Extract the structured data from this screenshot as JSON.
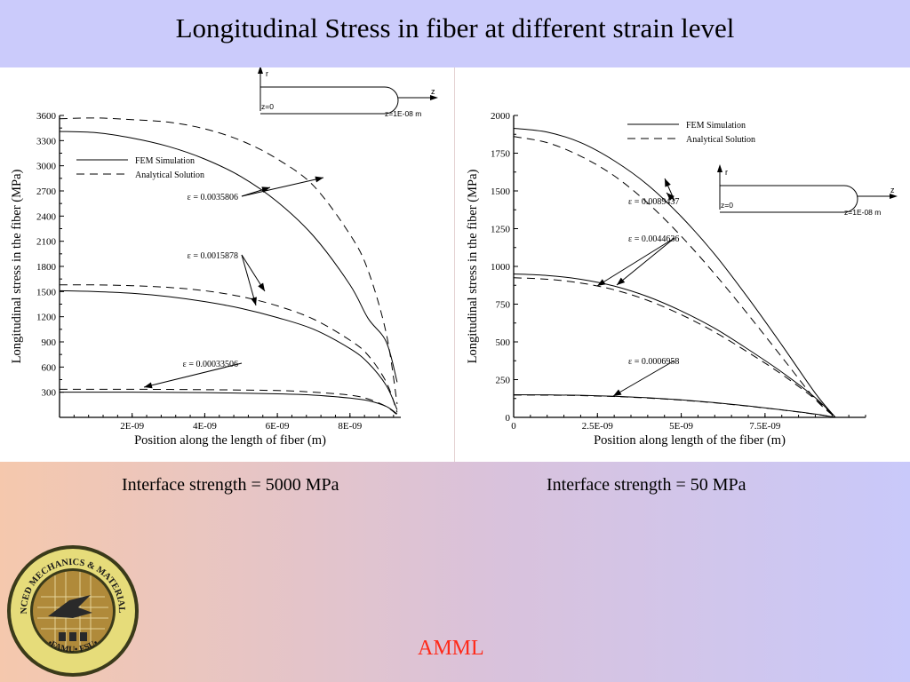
{
  "header": {
    "title": "Longitudinal Stress in fiber at different strain level"
  },
  "captions": {
    "left": "Interface strength = 5000 MPa",
    "right": "Interface strength = 50 MPa"
  },
  "footer": {
    "label": "AMML"
  },
  "logo": {
    "top_text": "ADVANCED MECHANICS & MATERIALS LAB",
    "bottom_text": "•FAMU• FSU•"
  },
  "colors": {
    "title_bg": "#cbcbfb",
    "footer_label": "#ff2a1a",
    "curve": "#000000"
  },
  "chart_data": [
    {
      "type": "line",
      "xlabel": "Position along the length of fiber (m)",
      "ylabel": "Longitudinal stress in the fiber (MPa)",
      "xlim": [
        0,
        9.4e-09
      ],
      "ylim": [
        0,
        3600
      ],
      "xticks": [
        2e-09,
        4e-09,
        6e-09,
        8e-09
      ],
      "xtick_labels": [
        "2E-09",
        "4E-09",
        "6E-09",
        "8E-09"
      ],
      "yticks": [
        300,
        600,
        900,
        1200,
        1500,
        1800,
        2100,
        2400,
        2700,
        3000,
        3300,
        3600
      ],
      "ytick_labels": [
        "300",
        "600",
        "900",
        "1200",
        "1500",
        "1800",
        "2100",
        "2400",
        "2700",
        "3000",
        "3300",
        "3600"
      ],
      "legend": {
        "position": "upper-left",
        "entries": [
          {
            "label": "FEM Simulation",
            "style": "solid"
          },
          {
            "label": "Analytical Solution",
            "style": "dashed"
          }
        ]
      },
      "inset": {
        "r_label": "r",
        "z_label": "z",
        "z_start": "z=0",
        "z_end": "z=1E-08 m"
      },
      "annotations": [
        {
          "text": "ε = 0.0035806",
          "x": 3.3e-09,
          "y": 2580
        },
        {
          "text": "ε = 0.0015878",
          "x": 3.3e-09,
          "y": 1650
        },
        {
          "text": "ε = 0.00033506",
          "x": 3.3e-09,
          "y": 560
        }
      ],
      "series": [
        {
          "style": "solid",
          "x": [
            0,
            1e-09,
            2e-09,
            3e-09,
            4e-09,
            5e-09,
            6e-09,
            7e-09,
            8e-09,
            8.5e-09,
            9e-09,
            9.3e-09
          ],
          "y": [
            3410,
            3395,
            3330,
            3230,
            3080,
            2870,
            2570,
            2160,
            1580,
            1180,
            900,
            420
          ]
        },
        {
          "style": "dashed",
          "x": [
            0,
            1e-09,
            2e-09,
            3e-09,
            4e-09,
            5e-09,
            6e-09,
            7e-09,
            8e-09,
            8.5e-09,
            9e-09,
            9.3e-09
          ],
          "y": [
            3560,
            3570,
            3550,
            3520,
            3440,
            3300,
            3080,
            2760,
            2180,
            1750,
            1000,
            160
          ]
        },
        {
          "style": "solid",
          "x": [
            0,
            1e-09,
            2e-09,
            3e-09,
            4e-09,
            5e-09,
            6e-09,
            7e-09,
            8e-09,
            8.5e-09,
            9e-09,
            9.3e-09
          ],
          "y": [
            1510,
            1500,
            1480,
            1440,
            1380,
            1300,
            1190,
            1050,
            820,
            650,
            380,
            90
          ]
        },
        {
          "style": "dashed",
          "x": [
            0,
            1e-09,
            2e-09,
            3e-09,
            4e-09,
            5e-09,
            6e-09,
            7e-09,
            8e-09,
            8.5e-09,
            9e-09,
            9.3e-09
          ],
          "y": [
            1580,
            1580,
            1570,
            1550,
            1510,
            1440,
            1330,
            1170,
            920,
            740,
            420,
            60
          ]
        },
        {
          "style": "solid",
          "x": [
            0,
            2e-09,
            4e-09,
            6e-09,
            7e-09,
            8e-09,
            8.5e-09,
            9e-09,
            9.3e-09
          ],
          "y": [
            300,
            300,
            295,
            280,
            265,
            230,
            200,
            130,
            40
          ]
        },
        {
          "style": "dashed",
          "x": [
            0,
            2e-09,
            4e-09,
            6e-09,
            7e-09,
            8e-09,
            8.5e-09,
            9e-09,
            9.3e-09
          ],
          "y": [
            335,
            335,
            330,
            320,
            300,
            265,
            220,
            130,
            30
          ]
        }
      ]
    },
    {
      "type": "line",
      "xlabel": "Position along length of the fiber (m)",
      "ylabel": "Longitudinal stress in the fiber (MPa)",
      "xlim": [
        0,
        1.05e-08
      ],
      "ylim": [
        0,
        2000
      ],
      "xticks": [
        0,
        2.5e-09,
        5e-09,
        7.5e-09
      ],
      "xtick_labels": [
        "0",
        "2.5E-09",
        "5E-09",
        "7.5E-09"
      ],
      "yticks": [
        0,
        250,
        500,
        750,
        1000,
        1250,
        1500,
        1750,
        2000
      ],
      "ytick_labels": [
        "0",
        "250",
        "500",
        "750",
        "1000",
        "1250",
        "1500",
        "1750",
        "2000"
      ],
      "legend": {
        "position": "top-right",
        "entries": [
          {
            "label": "FEM Simulation",
            "style": "solid"
          },
          {
            "label": "Analytical Solution",
            "style": "dashed"
          }
        ]
      },
      "inset": {
        "r_label": "r",
        "z_label": "z",
        "z_start": "z=0",
        "z_end": "z=1E-08 m"
      },
      "annotations": [
        {
          "text": "ε = 0.0089437",
          "x": 1.6e-09,
          "y": 1400
        },
        {
          "text": "ε = 0.0044636",
          "x": 1.8e-09,
          "y": 1150
        },
        {
          "text": "ε = 0.0006958",
          "x": 2e-09,
          "y": 330
        }
      ],
      "series": [
        {
          "style": "solid",
          "x": [
            0,
            1e-09,
            2e-09,
            3e-09,
            4e-09,
            5e-09,
            6e-09,
            7e-09,
            8e-09,
            9e-09,
            9.6e-09
          ],
          "y": [
            1915,
            1890,
            1820,
            1700,
            1540,
            1330,
            1080,
            790,
            480,
            160,
            0
          ]
        },
        {
          "style": "dashed",
          "x": [
            0,
            1e-09,
            2e-09,
            3e-09,
            4e-09,
            5e-09,
            6e-09,
            7e-09,
            8e-09,
            9e-09,
            9.6e-09
          ],
          "y": [
            1860,
            1820,
            1730,
            1600,
            1420,
            1200,
            950,
            680,
            400,
            120,
            0
          ]
        },
        {
          "style": "solid",
          "x": [
            0,
            1e-09,
            2e-09,
            3e-09,
            4e-09,
            5e-09,
            6e-09,
            7e-09,
            8e-09,
            9e-09,
            9.6e-09
          ],
          "y": [
            950,
            940,
            915,
            870,
            800,
            705,
            590,
            450,
            300,
            130,
            0
          ]
        },
        {
          "style": "dashed",
          "x": [
            0,
            1e-09,
            2e-09,
            3e-09,
            4e-09,
            5e-09,
            6e-09,
            7e-09,
            8e-09,
            9e-09,
            9.6e-09
          ],
          "y": [
            925,
            915,
            890,
            845,
            775,
            680,
            565,
            430,
            285,
            120,
            0
          ]
        },
        {
          "style": "solid",
          "x": [
            0,
            1e-09,
            2e-09,
            3e-09,
            4e-09,
            5e-09,
            6e-09,
            7e-09,
            8e-09,
            9e-09,
            9.6e-09
          ],
          "y": [
            150,
            149,
            146,
            140,
            130,
            116,
            98,
            76,
            50,
            22,
            0
          ]
        },
        {
          "style": "dashed",
          "x": [
            0,
            1e-09,
            2e-09,
            3e-09,
            4e-09,
            5e-09,
            6e-09,
            7e-09,
            8e-09,
            9e-09,
            9.6e-09
          ],
          "y": [
            148,
            147,
            144,
            138,
            128,
            114,
            96,
            74,
            49,
            21,
            0
          ]
        }
      ]
    }
  ]
}
